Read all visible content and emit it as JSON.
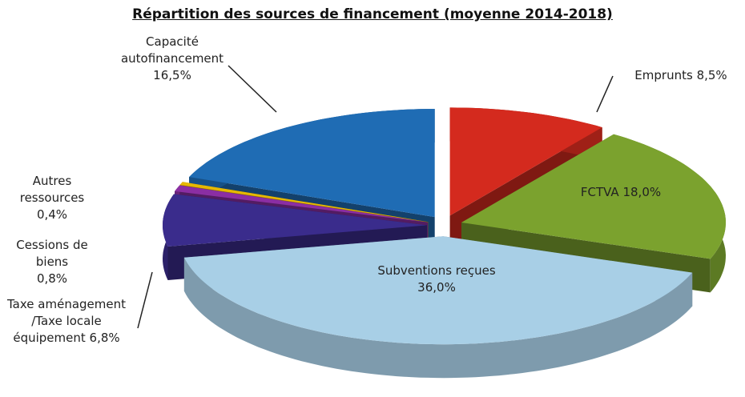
{
  "chart_data": {
    "type": "pie",
    "title": "Répartition des sources de financement (moyenne 2014-2018)",
    "categories": [
      "Emprunts",
      "FCTVA",
      "Subventions reçues",
      "Taxe aménagement /Taxe locale équipement",
      "Cessions de biens",
      "Autres ressources",
      "Capacité autofinancement"
    ],
    "values": [
      8.5,
      18.0,
      36.0,
      6.8,
      0.8,
      0.4,
      16.5
    ],
    "value_labels": [
      "8,5%",
      "18,0%",
      "36,0%",
      "6,8%",
      "0,8%",
      "0,4%",
      "16,5%"
    ],
    "colors": [
      "#d42a1e",
      "#7ba22e",
      "#a8cfe6",
      "#3a2c8c",
      "#8b2ea3",
      "#e6b800",
      "#1f6cb4"
    ]
  }
}
